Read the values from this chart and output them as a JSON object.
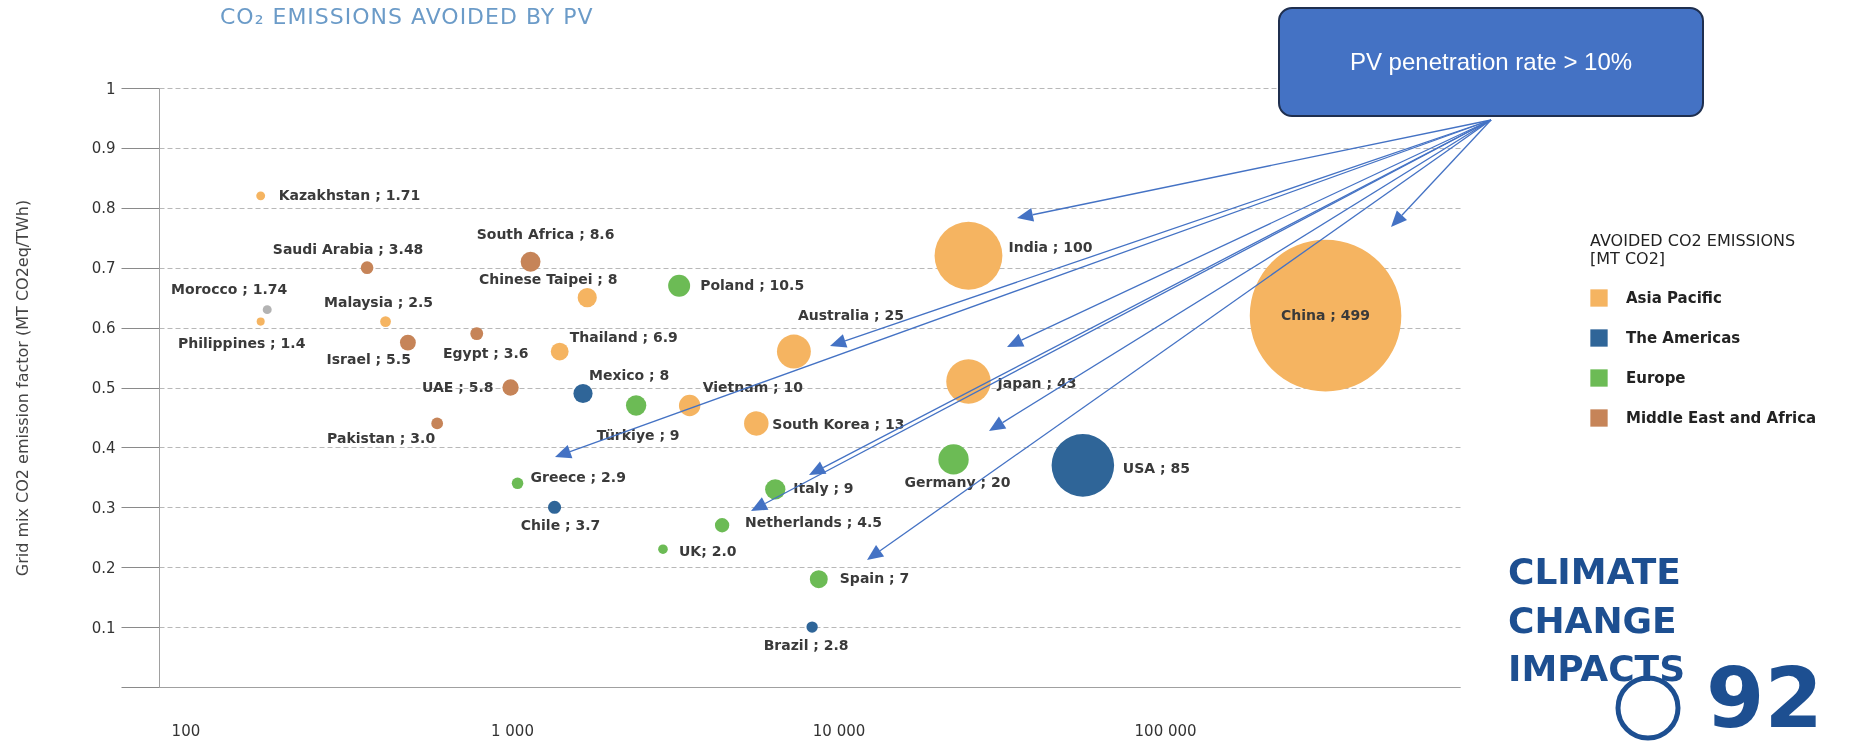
{
  "chart_data": {
    "type": "bubble",
    "title": "CO₂ EMISSIONS AVOIDED BY PV",
    "ylabel": "Grid mix CO2 emission factor (MT CO2eq/TWh)",
    "legend_title": "AVOIDED CO2 EMISSIONS\n[MT CO2]",
    "legend": "right",
    "grid": "y",
    "log": "x",
    "xlim": [
      83,
      800000
    ],
    "xticks": [
      100,
      {
        "value": 1000,
        "label": "1 000"
      },
      {
        "value": 10000,
        "label": "10 000"
      },
      {
        "value": 100000,
        "label": "100 000"
      }
    ],
    "ylim": [
      0,
      1
    ],
    "yticks": [
      {
        "value": 0,
        "label": null
      },
      0.1,
      0.2,
      0.3,
      0.4,
      0.5,
      0.6,
      0.7,
      0.8,
      0.9,
      1
    ],
    "series": [
      {
        "name": "Asia Pacific",
        "color": "#f5b461",
        "x": [
          170,
          170,
          410,
          1700,
          1400,
          7300,
          3500,
          5600,
          25000,
          310000,
          25000
        ],
        "values": [
          0.82,
          0.61,
          0.61,
          0.65,
          0.56,
          0.56,
          0.47,
          0.44,
          0.72,
          0.62,
          0.51
        ],
        "sizes": [
          0.00343,
          0.00281,
          0.00501,
          0.016,
          0.0138,
          0.0501,
          0.02,
          0.0261,
          0.2004,
          1,
          0.0862
        ]
      },
      {
        "name": "The Americas",
        "color": "#2f6598",
        "x": [
          1650,
          1350,
          8300,
          56000
        ],
        "values": [
          0.49,
          0.3,
          0.1,
          0.37
        ],
        "sizes": [
          0.016,
          0.00741,
          0.00561,
          0.1703
        ]
      },
      {
        "name": "Europe",
        "color": "#6cbb55",
        "x": [
          3250,
          2400,
          1040,
          6400,
          4400,
          2900,
          8700,
          22500
        ],
        "values": [
          0.67,
          0.47,
          0.34,
          0.33,
          0.27,
          0.23,
          0.18,
          0.38
        ],
        "sizes": [
          0.021,
          0.018,
          0.00581,
          0.018,
          0.00902,
          0.00401,
          0.014,
          0.0401
        ]
      },
      {
        "name": "Middle East and Africa",
        "color": "#c68458",
        "x": [
          360,
          480,
          780,
          1140,
          990,
          590
        ],
        "values": [
          0.7,
          0.575,
          0.59,
          0.71,
          0.5,
          0.44
        ],
        "sizes": [
          0.00697,
          0.011,
          0.00721,
          0.0172,
          0.0116,
          0.00601
        ]
      },
      {
        "color": "#b3b3b3",
        "x": [
          178
        ],
        "values": [
          0.63
        ],
        "sizes": [
          0.00349
        ]
      }
    ],
    "annotations": [
      {
        "text": "Kazakhstan ; 1.71",
        "x": 170,
        "y": 0.82
      },
      {
        "text": "Philippines ; 1.4",
        "x": 170,
        "y": 0.61
      },
      {
        "text": "Malaysia ; 2.5",
        "x": 410,
        "y": 0.61
      },
      {
        "text": "Chinese Taipei ;  8",
        "x": 1700,
        "y": 0.65
      },
      {
        "text": "Thailand ; 6.9",
        "x": 1400,
        "y": 0.56
      },
      {
        "text": "Australia ; 25",
        "x": 7300,
        "y": 0.56
      },
      {
        "text": "Vietnam ; 10",
        "x": 3500,
        "y": 0.47
      },
      {
        "text": "South Korea ; 13",
        "x": 5600,
        "y": 0.44
      },
      {
        "text": "India ; 100",
        "x": 25000,
        "y": 0.72
      },
      {
        "text": "China ; 499",
        "x": 310000,
        "y": 0.62
      },
      {
        "text": "Japan ; 43",
        "x": 25000,
        "y": 0.51
      },
      {
        "text": "Mexico ; 8",
        "x": 1650,
        "y": 0.49
      },
      {
        "text": "Chile ; 3.7",
        "x": 1350,
        "y": 0.3
      },
      {
        "text": "Brazil ; 2.8",
        "x": 8300,
        "y": 0.1
      },
      {
        "text": "USA ; 85",
        "x": 56000,
        "y": 0.37
      },
      {
        "text": "Poland ; 10.5",
        "x": 3250,
        "y": 0.67
      },
      {
        "text": "Türkiye ; 9",
        "x": 2400,
        "y": 0.47
      },
      {
        "text": "Greece ; 2.9",
        "x": 1040,
        "y": 0.34
      },
      {
        "text": "Italy ; 9",
        "x": 6400,
        "y": 0.33
      },
      {
        "text": "Netherlands ; 4.5",
        "x": 4400,
        "y": 0.27
      },
      {
        "text": "UK; 2.0",
        "x": 2900,
        "y": 0.23
      },
      {
        "text": "Spain ; 7",
        "x": 8700,
        "y": 0.18
      },
      {
        "text": "Germany ; 20",
        "x": 22500,
        "y": 0.38
      },
      {
        "text": "Saudi Arabia ; 3.48",
        "x": 360,
        "y": 0.7
      },
      {
        "text": "Israel ; 5.5",
        "x": 480,
        "y": 0.575
      },
      {
        "text": "Egypt ; 3.6",
        "x": 780,
        "y": 0.59
      },
      {
        "text": "South Africa ; 8.6",
        "x": 1140,
        "y": 0.71
      },
      {
        "text": "UAE ; 5.8",
        "x": 990,
        "y": 0.5
      },
      {
        "text": "Pakistan ; 3.0",
        "x": 590,
        "y": 0.44
      },
      {
        "text": "Morocco ; 1.74",
        "x": 178,
        "y": 0.63
      },
      "PV penetration rate > 10%",
      "CLIMATE CHANGE IMPACTS",
      "92"
    ]
  }
}
